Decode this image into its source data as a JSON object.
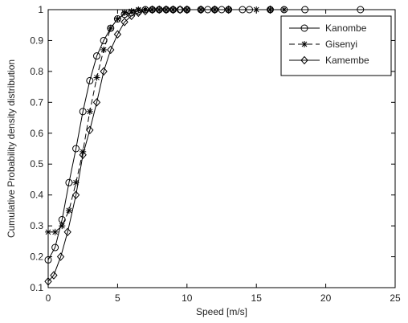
{
  "chart_data": {
    "type": "line",
    "xlabel": "Speed [m/s]",
    "ylabel": "Cumulative Probability density distribution",
    "xlim": [
      0,
      25
    ],
    "ylim": [
      0.1,
      1.0
    ],
    "xticks": [
      "0",
      "5",
      "10",
      "15",
      "20",
      "25"
    ],
    "yticks": [
      "0.1",
      "0.2",
      "0.3",
      "0.4",
      "0.5",
      "0.6",
      "0.7",
      "0.8",
      "0.9",
      "1"
    ],
    "grid": false,
    "legend_position": "top-right",
    "series": [
      {
        "name": "Kanombe",
        "marker": "circle",
        "dash": "solid",
        "x": [
          0,
          0.5,
          1,
          1.5,
          2,
          2.5,
          3,
          3.5,
          4,
          4.5,
          5,
          5.5,
          6,
          6.5,
          7,
          7.5,
          8,
          8.5,
          9,
          9.5,
          10,
          11,
          11.5,
          12,
          12.5,
          13,
          14,
          14.5,
          16,
          17,
          18.5,
          22.5
        ],
        "y": [
          0.19,
          0.23,
          0.32,
          0.44,
          0.55,
          0.67,
          0.77,
          0.85,
          0.9,
          0.94,
          0.97,
          0.985,
          0.99,
          0.995,
          1,
          1,
          1,
          1,
          1,
          1,
          1,
          1,
          1,
          1,
          1,
          1,
          1,
          1,
          1,
          1,
          1,
          1
        ]
      },
      {
        "name": "Gisenyi",
        "marker": "star",
        "dash": "dashed",
        "x": [
          0,
          0.5,
          1,
          1.5,
          2,
          2.5,
          3,
          3.5,
          4,
          4.5,
          5,
          5.5,
          6,
          6.5,
          7,
          7.5,
          8,
          8.5,
          9,
          10,
          11,
          12,
          13,
          15,
          16,
          17
        ],
        "y": [
          0.28,
          0.28,
          0.3,
          0.35,
          0.44,
          0.54,
          0.67,
          0.78,
          0.87,
          0.94,
          0.97,
          0.99,
          0.995,
          1,
          1,
          1,
          1,
          1,
          1,
          1,
          1,
          1,
          1,
          1,
          1,
          1
        ]
      },
      {
        "name": "Kamembe",
        "marker": "diamond",
        "dash": "solid",
        "x": [
          0,
          0.4,
          0.9,
          1.4,
          2,
          2.5,
          3,
          3.5,
          4,
          4.5,
          5,
          5.5,
          6,
          6.5,
          7,
          7.5,
          8,
          8.5,
          9,
          9.5,
          10,
          11,
          12,
          13,
          16
        ],
        "y": [
          0.12,
          0.14,
          0.2,
          0.28,
          0.4,
          0.53,
          0.61,
          0.7,
          0.8,
          0.87,
          0.92,
          0.96,
          0.98,
          0.99,
          0.995,
          1,
          1,
          1,
          1,
          1,
          1,
          1,
          1,
          1,
          1
        ]
      }
    ]
  }
}
